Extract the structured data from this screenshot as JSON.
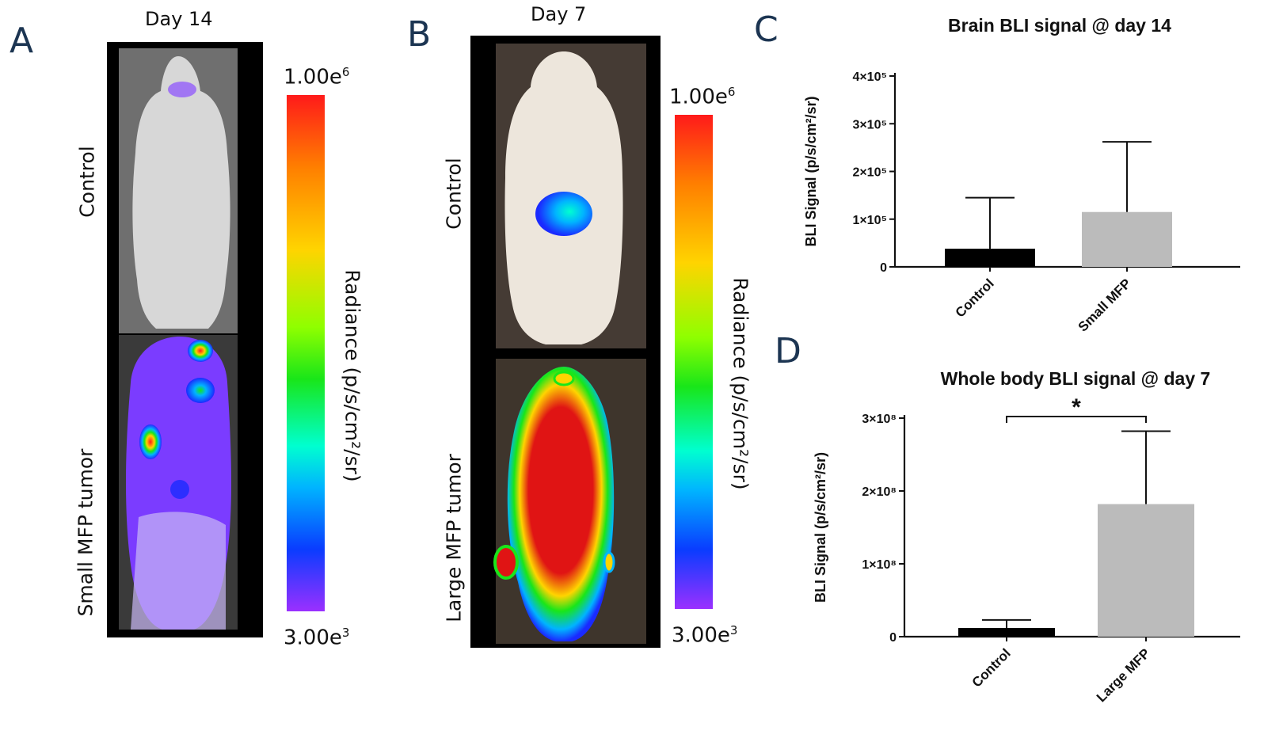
{
  "panels": {
    "a": {
      "letter": "A",
      "day": "Day 14",
      "top_group": "Control",
      "bottom_group": "Small MFP tumor",
      "colorbar": {
        "max_base": "1.00e",
        "max_exp": "6",
        "min_base": "3.00e",
        "min_exp": "3",
        "label": "Radiance (p/s/cm²/sr)"
      }
    },
    "b": {
      "letter": "B",
      "day": "Day 7",
      "top_group": "Control",
      "bottom_group": "Large MFP tumor",
      "colorbar": {
        "max_base": "1.00e",
        "max_exp": "6",
        "min_base": "3.00e",
        "min_exp": "3",
        "label": "Radiance (p/s/cm²/sr)"
      }
    },
    "c": {
      "letter": "C"
    },
    "d": {
      "letter": "D"
    }
  },
  "chart_data": [
    {
      "type": "bar",
      "title": "Brain BLI signal @ day 14",
      "ylabel": "BLI Signal (p/s/cm²/sr)",
      "categories": [
        "Control",
        "Small MFP"
      ],
      "values": [
        38000,
        115000
      ],
      "errors": [
        107000,
        147000
      ],
      "bar_colors": [
        "#000000",
        "#bbbbbb"
      ],
      "ylim": [
        0,
        400000
      ],
      "yticks": [
        0,
        100000,
        200000,
        300000,
        400000
      ],
      "ytick_labels": [
        "0",
        "1×10⁵",
        "2×10⁵",
        "3×10⁵",
        "4×10⁵"
      ],
      "annotations": []
    },
    {
      "type": "bar",
      "title": "Whole body BLI signal @ day 7",
      "ylabel": "BLI Signal (p/s/cm²/sr)",
      "categories": [
        "Control",
        "Large MFP"
      ],
      "values": [
        12000000,
        182000000
      ],
      "errors": [
        11000000,
        100000000
      ],
      "bar_colors": [
        "#000000",
        "#bbbbbb"
      ],
      "ylim": [
        0,
        300000000
      ],
      "yticks": [
        0,
        100000000,
        200000000,
        300000000
      ],
      "ytick_labels": [
        "0",
        "1×10⁸",
        "2×10⁸",
        "3×10⁸"
      ],
      "annotations": [
        {
          "text": "*",
          "between": [
            0,
            1
          ]
        }
      ]
    }
  ]
}
